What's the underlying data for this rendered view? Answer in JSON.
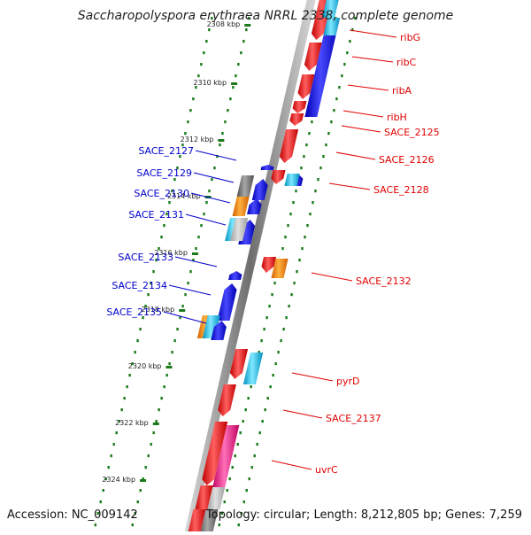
{
  "title": "Saccharopolyspora erythraea NRRL 2338, complete genome",
  "footer": {
    "accession": "Accession: NC_009142",
    "summary": "Topology: circular; Length: 8,212,805 bp; Genes: 7,259"
  },
  "ticks": [
    {
      "label": "2308 kbp"
    },
    {
      "label": "2310 kbp"
    },
    {
      "label": "2312 kbp"
    },
    {
      "label": "2314 kbp"
    },
    {
      "label": "2316 kbp"
    },
    {
      "label": "2318 kbp"
    },
    {
      "label": "2320 kbp"
    },
    {
      "label": "2322 kbp"
    },
    {
      "label": "2324 kbp"
    }
  ],
  "labels_forward": [
    "ribG",
    "ribC",
    "ribA",
    "ribH",
    "SACE_2125",
    "SACE_2126",
    "SACE_2128",
    "SACE_2132",
    "pyrD",
    "SACE_2137",
    "uvrC"
  ],
  "labels_reverse": [
    "SACE_2127",
    "SACE_2129",
    "SACE_2130",
    "SACE_2131",
    "SACE_2133",
    "SACE_2134",
    "SACE_2135"
  ],
  "colors": {
    "forward_label": "#e00000",
    "reverse_label": "#0000cc",
    "cds_red": "#ff0000",
    "cds_blue": "#0000ff",
    "cds_orange": "#ff8c00",
    "cds_cyan": "#00c8ff",
    "cds_magenta": "#ff2090",
    "cds_gray": "#808080",
    "backbone": "#7a7a7a",
    "tick_dots": "#1a7a1a"
  }
}
